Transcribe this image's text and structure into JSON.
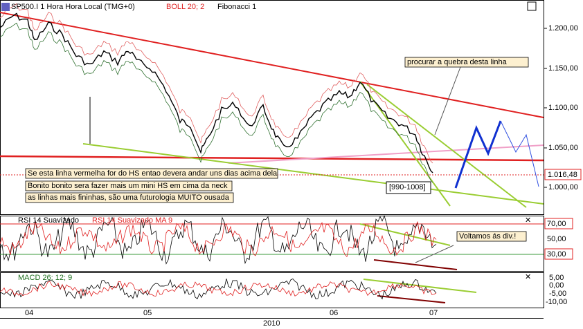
{
  "header": {
    "symbol": "SP500.I 1 Hora Hora Local (TMG+0)",
    "boll": "BOLL 20; 2",
    "fib": "Fibonacci 1"
  },
  "price_axis": {
    "labels": [
      "1.200,00",
      "1.150,00",
      "1.100,00",
      "1.050,00",
      "1.000,00"
    ],
    "current": "1.016,48"
  },
  "annotations": {
    "break_line": "procurar a quebra desta linha",
    "hs_line": "Se esta linha vermelha for do HS entao devera andar uns dias acima dela",
    "mini_hs": "Bonito bonito sera fazer mais um mini HS em cima da neck",
    "thin_lines": "as linhas mais fininhas, são uma futurologia MUITO ousada",
    "range": "[990-1008]",
    "div": "Voltamos ás div.!"
  },
  "rsi": {
    "title": "RSI 14 Suavizado",
    "ma": "RSI 14 Suavizado MA 9",
    "labels": [
      "70,00",
      "50,00",
      "30,00"
    ]
  },
  "macd": {
    "title": "MACD 26; 12; 9",
    "labels": [
      "5,00",
      "0,00",
      "-5,00",
      "-10,00"
    ]
  },
  "time_axis": {
    "months": [
      "04",
      "05",
      "06",
      "07"
    ],
    "year": "2010"
  }
}
